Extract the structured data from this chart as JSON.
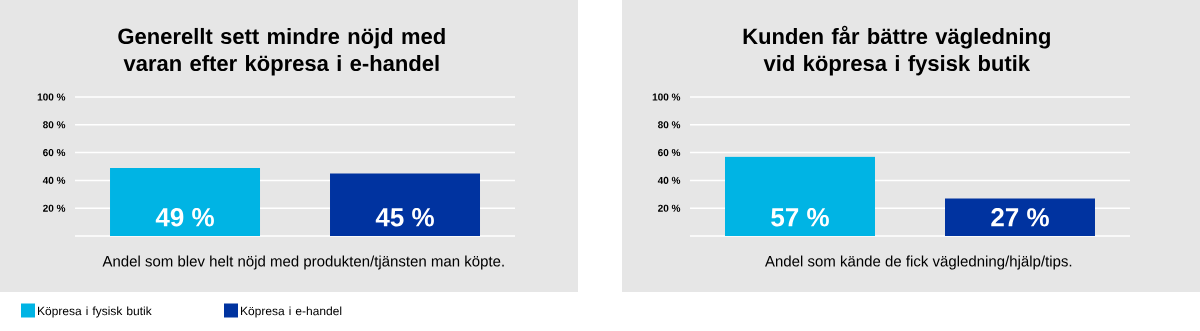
{
  "chart_data": [
    {
      "type": "bar",
      "title": "Generellt sett mindre nöjd med varan efter köpresa i e-handel",
      "xlabel": "Andel som blev helt nöjd med produkten/tjänsten man köpte.",
      "categories": [
        null
      ],
      "series": [
        {
          "name": "Köpresa i fysisk butik",
          "color": "#00b4e4",
          "values": [
            49
          ],
          "value_labels": [
            "49 %"
          ]
        },
        {
          "name": "Köpresa i e-handel",
          "color": "#0033a0",
          "values": [
            45
          ],
          "value_labels": [
            "45 %"
          ]
        }
      ],
      "ylim": [
        0,
        100
      ],
      "yticks": [
        {
          "value": 0,
          "label": null
        },
        {
          "value": 20,
          "label": "20 %"
        },
        {
          "value": 40,
          "label": "40 %"
        },
        {
          "value": 60,
          "label": "60 %"
        },
        {
          "value": 80,
          "label": "80 %"
        },
        {
          "value": 100,
          "label": "100 %"
        }
      ],
      "grid": "y",
      "legend": "bottom left"
    },
    {
      "type": "bar",
      "title": "Kunden får bättre vägledning vid köpresa i fysisk butik",
      "xlabel": "Andel som kände de fick vägledning/hjälp/tips.",
      "categories": [
        null
      ],
      "series": [
        {
          "color": "#00b4e4",
          "values": [
            57
          ],
          "value_labels": [
            "57 %"
          ]
        },
        {
          "color": "#0033a0",
          "values": [
            27
          ],
          "value_labels": [
            "27 %"
          ]
        }
      ],
      "ylim": [
        0,
        100
      ],
      "yticks": [
        {
          "value": 0,
          "label": null
        },
        {
          "value": 20,
          "label": "20 %"
        },
        {
          "value": 40,
          "label": "40 %"
        },
        {
          "value": 60,
          "label": "60 %"
        },
        {
          "value": 80,
          "label": "80 %"
        },
        {
          "value": 100,
          "label": "100 %"
        }
      ],
      "grid": "y"
    }
  ]
}
